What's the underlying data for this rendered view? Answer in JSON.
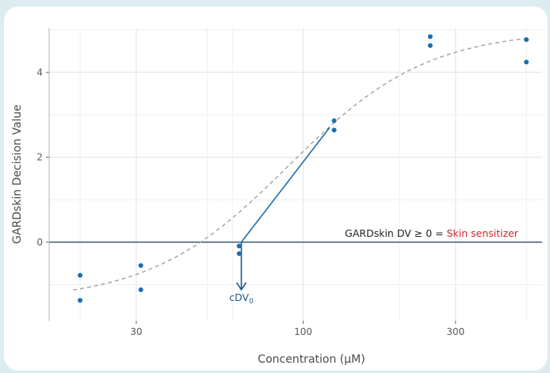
{
  "colors": {
    "background": "#dcecf1",
    "panel": "#ffffff",
    "points": "#1a6fb0",
    "fit_curve": "#a0a0a0",
    "threshold_line": "#3d5a78",
    "slope_line": "#1a6fb0",
    "arrow": "#1a5a8a",
    "sensitizer_text": "#d0262e",
    "grid": "#e3e3e3"
  },
  "chart_data": {
    "type": "scatter",
    "xlabel": "Concentration (µM)",
    "ylabel": "GARDskin Decision Value",
    "x_scale": "log",
    "xlim": [
      16,
      560
    ],
    "ylim": [
      -1.85,
      5.05
    ],
    "x_ticks": [
      30,
      100,
      300
    ],
    "x_tick_labels": [
      "30",
      "100",
      "300"
    ],
    "y_ticks": [
      0,
      2,
      4
    ],
    "y_tick_labels": [
      "0",
      "2",
      "4"
    ],
    "grid": true,
    "points": [
      {
        "x": 20,
        "y": -0.78
      },
      {
        "x": 20,
        "y": -1.37
      },
      {
        "x": 31,
        "y": -0.55
      },
      {
        "x": 31,
        "y": -1.12
      },
      {
        "x": 63,
        "y": -0.09
      },
      {
        "x": 63,
        "y": -0.27
      },
      {
        "x": 125,
        "y": 2.86
      },
      {
        "x": 125,
        "y": 2.64
      },
      {
        "x": 250,
        "y": 4.84
      },
      {
        "x": 250,
        "y": 4.63
      },
      {
        "x": 500,
        "y": 4.77
      },
      {
        "x": 500,
        "y": 4.24
      }
    ],
    "fit_curve": {
      "style": "dashed",
      "bottom": -1.4,
      "top": 5.0,
      "ec50": 90,
      "hill": 2.0
    },
    "threshold": {
      "y": 0
    },
    "slope_line": {
      "x_start": 64,
      "y_start": 0,
      "x_end": 121,
      "y_end": 2.7
    },
    "cdv": {
      "x": 64
    }
  },
  "annotations": {
    "threshold_prefix": "GARDskin DV ≥ 0 = ",
    "threshold_highlight": "Skin sensitizer",
    "cdv_base": "cDV",
    "cdv_subscript": "0"
  }
}
